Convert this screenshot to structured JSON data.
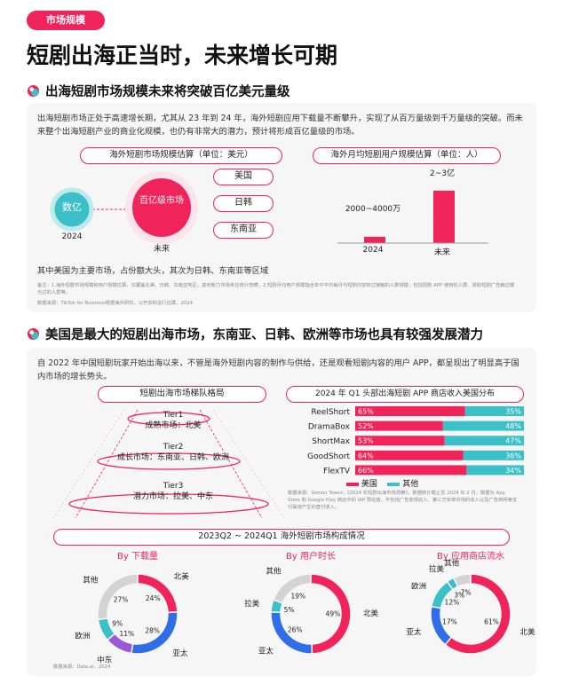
{
  "tag": "市场规模",
  "title": "短剧出海正当时，未来增长可期",
  "section1": {
    "heading": "出海短剧市场规模未来将突破百亿美元量级",
    "intro": "出海短剧市场正处于高速增长期，尤其从 23 年到 24 年，海外短剧应用下载量不断攀升，实现了从百万量级到千万量级的突破。而未来整个出海短剧产业的商业化规模，也仍有非常大的潜力，预计将形成百亿量级的市场。",
    "left_title": "海外短剧市场规模估算（单位：美元）",
    "right_title": "海外月均短剧用户规模估算（单位：人）",
    "bubble_now": "数亿",
    "bubble_future": "百亿级市场",
    "year_now": "2024",
    "year_future": "未来",
    "regions": [
      "美国",
      "日韩",
      "东南亚"
    ],
    "note_main": "其中美国为主要市场，占份额大头，其次为日韩、东南亚等区域",
    "note_small": "备注：1.海外短剧市场规模和用户规模估算，仅覆盖北美、日韩、东南亚地区，其他新力市场未在统计范畴。2.短剧月均用户规模指全年中平均每月与短剧内容有过接触的人数规模，包括短剧 APP 使用的人群、获取短剧广告触达曝光过的人群等。",
    "source": "数据来源：TikTok for Business根据海外研究、公开资料进行估算，2024",
    "bar_chart": {
      "categories": [
        "2024",
        "未来"
      ],
      "labels": [
        "2000~4000万",
        "2~3亿"
      ],
      "values": [
        30000000,
        250000000
      ]
    }
  },
  "section2": {
    "heading": "美国是最大的短剧出海市场，东南亚、日韩、欧洲等市场也具有较强发展潜力",
    "intro": "自 2022 年中国短剧玩家开始出海以来，不管是海外短剧内容的制作与供给，还是观看短剧内容的用户 APP，都呈现出了明显高于国内市场的增长势头。",
    "tier_title": "短剧出海市场梯队格局",
    "tiers": [
      {
        "name": "Tier1",
        "desc": "成熟市场：北美"
      },
      {
        "name": "Tier2",
        "desc": "成长市场：东南亚、日韩、欧洲"
      },
      {
        "name": "Tier3",
        "desc": "潜力市场：拉美、中东"
      }
    ],
    "share_title": "2024 年 Q1 头部出海短剧 APP 商店收入美国分布",
    "share_legend": [
      "美国",
      "其他"
    ],
    "share_source": "数据来源：Sensor Tower，《2024 年短剧出海市场洞察》，数据统计截止至 2024 年 2 月，数据为 App Store 和 Google Play 商店中的 IAP 预估值，不包括广告变现收入、第三方安卓市场的收入以及广告商网等支付渠道产生的直付收入。",
    "colors": {
      "us": "#f0245a",
      "other": "#3cc0c8"
    }
  },
  "chart_data": [
    {
      "type": "bar",
      "title": "2024 年 Q1 头部出海短剧 APP 商店收入美国分布",
      "categories": [
        "ReelShort",
        "DramaBox",
        "ShortMax",
        "GoodShort",
        "FlexTV"
      ],
      "series": [
        {
          "name": "美国",
          "values": [
            65,
            52,
            53,
            64,
            66
          ]
        },
        {
          "name": "其他",
          "values": [
            35,
            48,
            47,
            36,
            34
          ]
        }
      ]
    },
    {
      "type": "pie",
      "title": "By 下载量",
      "slices": [
        {
          "label": "北美",
          "value": 24
        },
        {
          "label": "亚太",
          "value": 28
        },
        {
          "label": "中东",
          "value": 11
        },
        {
          "label": "欧洲",
          "value": 9
        },
        {
          "label": "其他",
          "value": 27
        }
      ]
    },
    {
      "type": "pie",
      "title": "By 用户时长",
      "slices": [
        {
          "label": "北美",
          "value": 49
        },
        {
          "label": "亚太",
          "value": 26
        },
        {
          "label": "拉美",
          "value": 5
        },
        {
          "label": "其他",
          "value": 19
        }
      ]
    },
    {
      "type": "pie",
      "title": "By 应用商店流水",
      "slices": [
        {
          "label": "北美",
          "value": 61
        },
        {
          "label": "亚太",
          "value": 17
        },
        {
          "label": "欧洲",
          "value": 12
        },
        {
          "label": "拉美",
          "value": 3
        },
        {
          "label": "其他",
          "value": 7
        }
      ]
    }
  ],
  "section3": {
    "title": "2023Q2 ~ 2024Q1 海外短剧市场构成情况",
    "source": "数据来源：Data.ai，2024",
    "donut_colors": {
      "北美": "#f0245a",
      "亚太": "#2f6ee8",
      "中东": "#9b59d6",
      "欧洲": "#3cc0c8",
      "拉美": "#3cc0c8",
      "其他": "#d3d3d3"
    }
  }
}
